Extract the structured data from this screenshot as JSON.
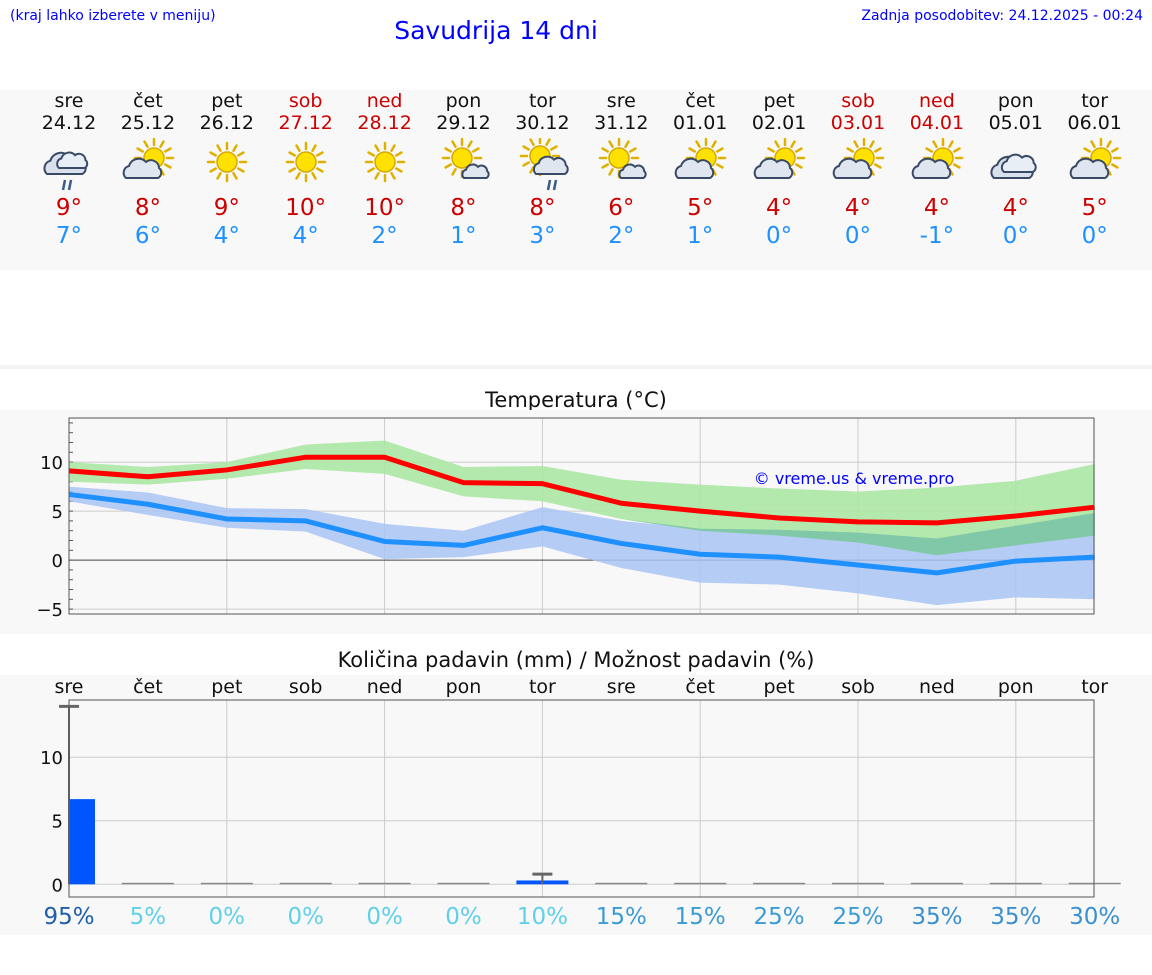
{
  "header": {
    "hint": "(kraj lahko izberete v meniju)",
    "title": "Savudrija 14 dni",
    "updated": "Zadnja posodobitev: 24.12.2025 - 00:24"
  },
  "days": [
    {
      "name": "sre",
      "date": "24.12",
      "icon": "cloud-rain-icon",
      "max": "9°",
      "min": "7°",
      "weekend": false
    },
    {
      "name": "čet",
      "date": "25.12",
      "icon": "sun-cloud-icon",
      "max": "8°",
      "min": "6°",
      "weekend": false
    },
    {
      "name": "pet",
      "date": "26.12",
      "icon": "sun-icon",
      "max": "9°",
      "min": "4°",
      "weekend": false
    },
    {
      "name": "sob",
      "date": "27.12",
      "icon": "sun-icon",
      "max": "10°",
      "min": "4°",
      "weekend": true
    },
    {
      "name": "ned",
      "date": "28.12",
      "icon": "sun-icon",
      "max": "10°",
      "min": "2°",
      "weekend": true
    },
    {
      "name": "pon",
      "date": "29.12",
      "icon": "sun-small-cloud-icon",
      "max": "8°",
      "min": "1°",
      "weekend": false
    },
    {
      "name": "tor",
      "date": "30.12",
      "icon": "sun-cloud-rain-icon",
      "max": "8°",
      "min": "3°",
      "weekend": false
    },
    {
      "name": "sre",
      "date": "31.12",
      "icon": "sun-small-cloud-icon",
      "max": "6°",
      "min": "2°",
      "weekend": false
    },
    {
      "name": "čet",
      "date": "01.01",
      "icon": "sun-cloud-icon",
      "max": "5°",
      "min": "1°",
      "weekend": false
    },
    {
      "name": "pet",
      "date": "02.01",
      "icon": "sun-cloud-icon",
      "max": "4°",
      "min": "0°",
      "weekend": false
    },
    {
      "name": "sob",
      "date": "03.01",
      "icon": "sun-cloud-icon",
      "max": "4°",
      "min": "0°",
      "weekend": true
    },
    {
      "name": "ned",
      "date": "04.01",
      "icon": "sun-cloud-icon",
      "max": "4°",
      "min": "-1°",
      "weekend": true
    },
    {
      "name": "pon",
      "date": "05.01",
      "icon": "cloud-icon",
      "max": "4°",
      "min": "0°",
      "weekend": false
    },
    {
      "name": "tor",
      "date": "06.01",
      "icon": "sun-cloud-icon",
      "max": "5°",
      "min": "0°",
      "weekend": false
    }
  ],
  "colors": {
    "max_line": "#ff0000",
    "min_line": "#1e90ff",
    "max_band": "#a8e6a0",
    "min_band": "#a9c4f5",
    "overlap_band": "#7cc4a8",
    "precip_bar": "#0055ff",
    "weekend_text": "#cc0000",
    "link": "#0000ff"
  },
  "chart_data": [
    {
      "type": "line",
      "title": "Temperatura (°C)",
      "xlabel": "",
      "ylabel": "",
      "ylim": [
        -5.5,
        14.5
      ],
      "yticks": [
        -5,
        0,
        5,
        10
      ],
      "ytick_labels": [
        "−5",
        "0",
        "5",
        "10"
      ],
      "watermark": "© vreme.us & vreme.pro",
      "x": [
        0,
        1,
        2,
        3,
        4,
        5,
        6,
        7,
        8,
        9,
        10,
        11,
        12,
        13
      ],
      "series": [
        {
          "name": "max",
          "values": [
            9.1,
            8.5,
            9.2,
            10.5,
            10.5,
            7.9,
            7.8,
            5.8,
            5.0,
            4.3,
            3.9,
            3.8,
            4.5,
            5.4
          ],
          "band_low": [
            8.0,
            7.7,
            8.3,
            9.3,
            8.8,
            6.5,
            6.0,
            4.2,
            3.0,
            2.5,
            1.8,
            0.5,
            1.5,
            2.5
          ],
          "band_high": [
            10.0,
            9.5,
            10.0,
            11.8,
            12.2,
            9.5,
            9.6,
            8.2,
            7.7,
            7.3,
            7.0,
            7.4,
            8.1,
            9.8
          ]
        },
        {
          "name": "min",
          "values": [
            6.7,
            5.7,
            4.2,
            4.0,
            1.9,
            1.5,
            3.3,
            1.7,
            0.6,
            0.3,
            -0.5,
            -1.3,
            -0.1,
            0.3
          ],
          "band_low": [
            6.0,
            4.6,
            3.3,
            2.9,
            0.1,
            0.3,
            1.4,
            -0.8,
            -2.3,
            -2.5,
            -3.4,
            -4.6,
            -3.8,
            -4.0
          ],
          "band_high": [
            7.5,
            6.9,
            5.3,
            5.2,
            3.7,
            3.0,
            5.4,
            4.0,
            3.2,
            3.1,
            2.8,
            2.2,
            3.5,
            4.8
          ]
        }
      ]
    },
    {
      "type": "bar",
      "title": "Količina padavin (mm) / Možnost padavin (%)",
      "ylim": [
        -1,
        14.5
      ],
      "yticks": [
        0,
        5,
        10
      ],
      "ytick_labels": [
        "0",
        "5",
        "10"
      ],
      "categories": [
        "sre",
        "čet",
        "pet",
        "sob",
        "ned",
        "pon",
        "tor",
        "sre",
        "čet",
        "pet",
        "sob",
        "ned",
        "pon",
        "tor"
      ],
      "values": [
        6.7,
        0,
        0,
        0,
        0,
        0,
        0.3,
        0,
        0,
        0,
        0,
        0,
        0,
        0
      ],
      "error_high": [
        14.0,
        0,
        0,
        0,
        0,
        0,
        0.8,
        0,
        0,
        0,
        0,
        0,
        0,
        0
      ],
      "probability": [
        "95%",
        "5%",
        "0%",
        "0%",
        "0%",
        "0%",
        "10%",
        "15%",
        "15%",
        "25%",
        "25%",
        "35%",
        "35%",
        "30%"
      ],
      "probability_colors": [
        "#1f5fa8",
        "#5fd0e8",
        "#5fd0e8",
        "#5fd0e8",
        "#5fd0e8",
        "#5fd0e8",
        "#5fd0e8",
        "#3a9bd5",
        "#3a9bd5",
        "#3a9bd5",
        "#3a9bd5",
        "#3a8fd0",
        "#3a8fd0",
        "#3a8fd0"
      ]
    }
  ]
}
